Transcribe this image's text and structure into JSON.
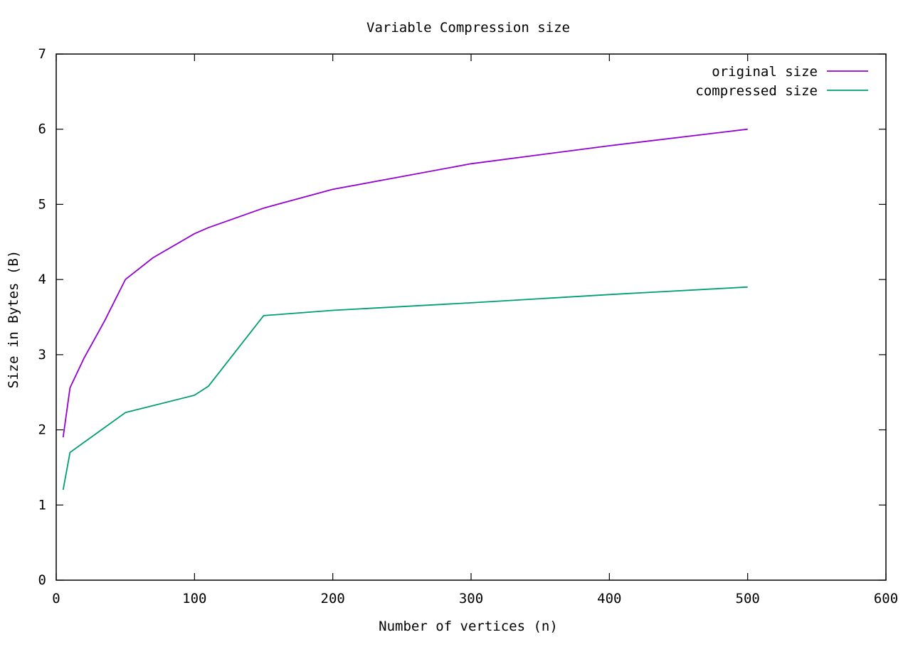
{
  "chart_data": {
    "type": "line",
    "title": "Variable Compression size",
    "xlabel": "Number of vertices (n)",
    "ylabel": "Size in Bytes (B)",
    "xlim": [
      0,
      600
    ],
    "ylim": [
      0,
      7
    ],
    "xticks": [
      0,
      100,
      200,
      300,
      400,
      500,
      600
    ],
    "yticks": [
      0,
      1,
      2,
      3,
      4,
      5,
      6,
      7
    ],
    "grid": false,
    "legend_position": "top-right",
    "series": [
      {
        "name": "original size",
        "color": "#9400d3",
        "x": [
          5,
          10,
          20,
          35,
          50,
          70,
          100,
          110,
          150,
          200,
          300,
          400,
          500
        ],
        "y": [
          1.9,
          2.56,
          2.95,
          3.45,
          4.0,
          4.29,
          4.61,
          4.69,
          4.95,
          5.2,
          5.54,
          5.78,
          6.0
        ]
      },
      {
        "name": "compressed size",
        "color": "#009e73",
        "x": [
          5,
          10,
          50,
          100,
          110,
          150,
          200,
          300,
          400,
          500
        ],
        "y": [
          1.2,
          1.7,
          2.23,
          2.46,
          2.58,
          3.52,
          3.59,
          3.69,
          3.8,
          3.9
        ]
      }
    ]
  }
}
